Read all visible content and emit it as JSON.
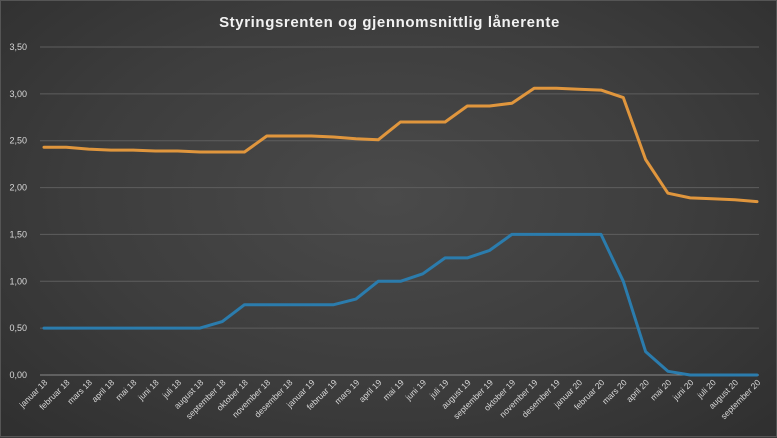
{
  "chart_data": {
    "type": "line",
    "title": "Styringsrenten og gjennomsnittlig lånerente",
    "categories": [
      "januar 18",
      "februar 18",
      "mars 18",
      "april 18",
      "mai 18",
      "juni 18",
      "juli 18",
      "august 18",
      "september 18",
      "oktober 18",
      "november 18",
      "desember 18",
      "januar 19",
      "februar 19",
      "mars 19",
      "april 19",
      "mai 19",
      "juni 19",
      "juli 19",
      "august 19",
      "september 19",
      "oktober 19",
      "november 19",
      "desember 19",
      "januar 20",
      "februar 20",
      "mars 20",
      "april 20",
      "mai 20",
      "juni 20",
      "juli 20",
      "august 20",
      "september 20"
    ],
    "series": [
      {
        "color": "#e0963d",
        "values": [
          2.43,
          2.43,
          2.41,
          2.4,
          2.4,
          2.39,
          2.39,
          2.38,
          2.38,
          2.38,
          2.55,
          2.55,
          2.55,
          2.54,
          2.52,
          2.51,
          2.7,
          2.7,
          2.7,
          2.87,
          2.87,
          2.9,
          3.06,
          3.06,
          3.05,
          3.04,
          2.96,
          2.3,
          1.94,
          1.89,
          1.88,
          1.87,
          1.85
        ]
      },
      {
        "color": "#2b7cad",
        "values": [
          0.5,
          0.5,
          0.5,
          0.5,
          0.5,
          0.5,
          0.5,
          0.5,
          0.57,
          0.75,
          0.75,
          0.75,
          0.75,
          0.75,
          0.81,
          1.0,
          1.0,
          1.08,
          1.25,
          1.25,
          1.33,
          1.5,
          1.5,
          1.5,
          1.5,
          1.5,
          1.0,
          0.25,
          0.04,
          0.0,
          0.0,
          0.0,
          0.0
        ]
      }
    ],
    "y_ticks": [
      "0,00",
      "0,50",
      "1,00",
      "1,50",
      "2,00",
      "2,50",
      "3,00",
      "3,50"
    ],
    "ylim": [
      0,
      3.5
    ],
    "grid": true,
    "legend": "none"
  }
}
